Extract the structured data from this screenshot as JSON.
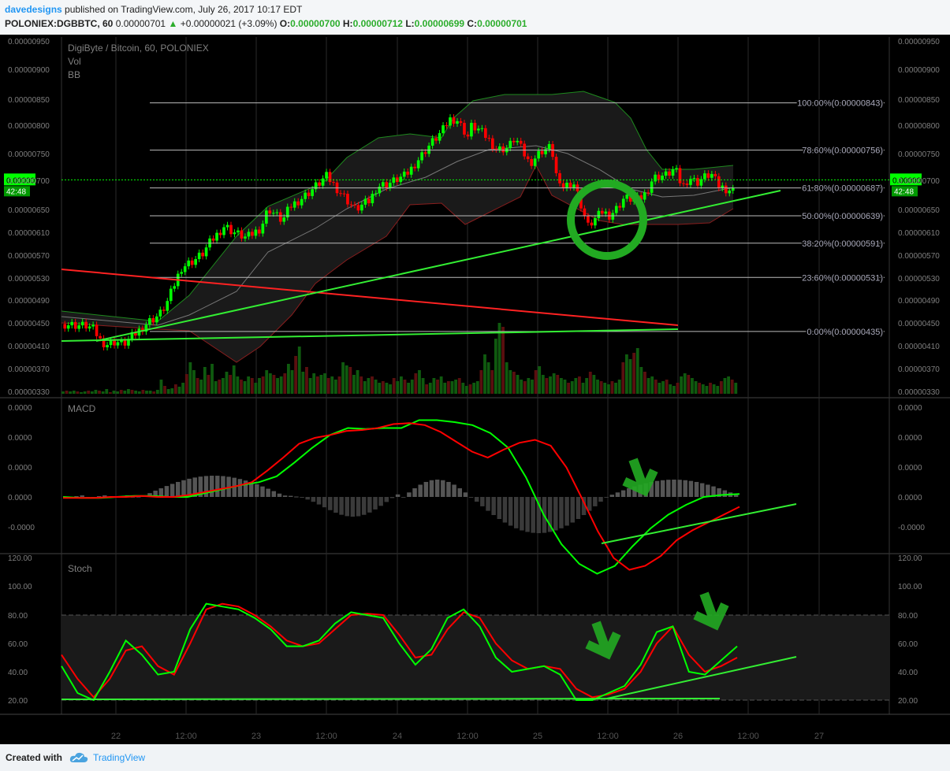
{
  "header": {
    "author": "davedesigns",
    "published_text": "published on TradingView.com, July 26, 2017 10:17 EDT",
    "symbol": "POLONIEX:DGBBTC, 60",
    "last_price": "0.00000701",
    "arrow": "▲",
    "change": "+0.00000021 (+3.09%)",
    "o_label": "O:",
    "o_value": "0.00000700",
    "h_label": "H:",
    "h_value": "0.00000712",
    "l_label": "L:",
    "l_value": "0.00000699",
    "c_label": "C:",
    "c_value": "0.00000701"
  },
  "footer": {
    "created_with": "Created with",
    "brand": "TradingView"
  },
  "colors": {
    "background": "#000000",
    "bull": "#00ff00",
    "bear": "#ff0000",
    "trendline_green": "#33ee33",
    "trendline_red": "#ff2222",
    "axis_text": "#7f7f7f",
    "grid": "#2a2a2a",
    "price_badge": "#00ff00",
    "annotation": "#22aa22"
  },
  "chart_data": [
    {
      "type": "candlestick",
      "panel": "price",
      "title": "DigiByte / Bitcoin, 60, POLONIEX",
      "studies": [
        "Vol",
        "BB"
      ],
      "y_ticks": [
        "0.00000950",
        "0.00000900",
        "0.00000850",
        "0.00000800",
        "0.00000750",
        "0.00000700",
        "0.00000650",
        "0.00000610",
        "0.00000570",
        "0.00000530",
        "0.00000490",
        "0.00000450",
        "0.00000410",
        "0.00000370",
        "0.00000330"
      ],
      "x_ticks": [
        "22",
        "12:00",
        "23",
        "12:00",
        "24",
        "12:00",
        "25",
        "12:00",
        "26",
        "12:00",
        "27"
      ],
      "current_price": "0.00000701",
      "countdown": "42:48",
      "close_path": [
        [
          0,
          448
        ],
        [
          3,
          446
        ],
        [
          6,
          445
        ],
        [
          8,
          438
        ],
        [
          10,
          417
        ],
        [
          12,
          412
        ],
        [
          14,
          418
        ],
        [
          16,
          412
        ],
        [
          20,
          434
        ],
        [
          23,
          452
        ],
        [
          26,
          464
        ],
        [
          28,
          483
        ],
        [
          32,
          548
        ],
        [
          36,
          563
        ],
        [
          38,
          573
        ],
        [
          40,
          592
        ],
        [
          44,
          622
        ],
        [
          46,
          612
        ],
        [
          50,
          600
        ],
        [
          54,
          618
        ],
        [
          56,
          652
        ],
        [
          60,
          630
        ],
        [
          62,
          655
        ],
        [
          66,
          673
        ],
        [
          70,
          695
        ],
        [
          72,
          708
        ],
        [
          74,
          693
        ],
        [
          80,
          650
        ],
        [
          84,
          665
        ],
        [
          86,
          690
        ],
        [
          89,
          694
        ],
        [
          94,
          710
        ],
        [
          100,
          762
        ],
        [
          104,
          790
        ],
        [
          106,
          812
        ],
        [
          108,
          810
        ],
        [
          111,
          780
        ],
        [
          112,
          799
        ],
        [
          114,
          792
        ],
        [
          116,
          780
        ],
        [
          119,
          757
        ],
        [
          122,
          760
        ],
        [
          124,
          778
        ],
        [
          128,
          731
        ],
        [
          131,
          754
        ],
        [
          134,
          762
        ],
        [
          136,
          686
        ],
        [
          140,
          698
        ],
        [
          142,
          661
        ],
        [
          144,
          620
        ],
        [
          148,
          646
        ],
        [
          150,
          640
        ],
        [
          152,
          652
        ],
        [
          154,
          670
        ],
        [
          158,
          666
        ],
        [
          160,
          678
        ],
        [
          162,
          705
        ],
        [
          166,
          711
        ],
        [
          168,
          722
        ],
        [
          170,
          688
        ],
        [
          172,
          706
        ],
        [
          174,
          696
        ],
        [
          176,
          706
        ],
        [
          178,
          712
        ],
        [
          180,
          690
        ],
        [
          184,
          682
        ]
      ],
      "fibonacci": [
        {
          "label": "100.00%(0.00000843)",
          "price": 8.43e-06
        },
        {
          "label": "78.60%(0.00000756)",
          "price": 7.56e-06
        },
        {
          "label": "61.80%(0.00000687)",
          "price": 6.87e-06
        },
        {
          "label": "50.00%(0.00000639)",
          "price": 6.39e-06
        },
        {
          "label": "38.20%(0.00000591)",
          "price": 5.91e-06
        },
        {
          "label": "23.60%(0.00000531)",
          "price": 5.31e-06
        },
        {
          "label": "0.00%(0.00000435)",
          "price": 4.35e-06
        }
      ],
      "volume": [
        3,
        4,
        3,
        4,
        3,
        2,
        3,
        4,
        3,
        5,
        4,
        3,
        6,
        2,
        4,
        3,
        5,
        4,
        6,
        5,
        4,
        3,
        5,
        4,
        4,
        3,
        5,
        18,
        10,
        6,
        7,
        12,
        9,
        14,
        25,
        40,
        30,
        20,
        18,
        34,
        24,
        38,
        16,
        18,
        20,
        28,
        24,
        36,
        22,
        18,
        16,
        22,
        20,
        14,
        20,
        22,
        30,
        26,
        24,
        20,
        22,
        26,
        38,
        30,
        48,
        60,
        28,
        34,
        20,
        26,
        22,
        24,
        26,
        20,
        22,
        18,
        22,
        40,
        36,
        34,
        24,
        30,
        22,
        16,
        20,
        22,
        18,
        14,
        16,
        14,
        12,
        20,
        16,
        22,
        18,
        14,
        18,
        26,
        30,
        20,
        12,
        14,
        20,
        18,
        22,
        14,
        16,
        16,
        18,
        20,
        14,
        10,
        12,
        14,
        16,
        30,
        50,
        40,
        30,
        70,
        90,
        85,
        40,
        30,
        28,
        24,
        18,
        16,
        20,
        18,
        30,
        35,
        24,
        20,
        22,
        26,
        24,
        20,
        18,
        14,
        16,
        20,
        22,
        14,
        20,
        28,
        24,
        18,
        16,
        14,
        12,
        16,
        14,
        18,
        40,
        50,
        44,
        52,
        58,
        34,
        28,
        20,
        22,
        18,
        14,
        16,
        18,
        12,
        10,
        14,
        22,
        26,
        24,
        20,
        16,
        14,
        12,
        10,
        14,
        12,
        10,
        16,
        20,
        22,
        18,
        14
      ]
    },
    {
      "type": "line",
      "panel": "macd",
      "title": "MACD",
      "y_ticks": [
        "0.0000",
        "0.0000",
        "0.0000",
        "0.0000",
        "-0.0000"
      ],
      "series": [
        {
          "name": "",
          "values": [
            0,
            -1,
            -1,
            0,
            1,
            1,
            0,
            0,
            4,
            8,
            12,
            15,
            21,
            35,
            50,
            63,
            70,
            69,
            70,
            70,
            78,
            78,
            76,
            73,
            65,
            50,
            20,
            -18,
            -48,
            -68,
            -78,
            -70,
            -50,
            -32,
            -18,
            -8,
            0,
            2,
            3
          ]
        },
        {
          "name": "",
          "values": [
            -1,
            -1,
            -1,
            0,
            0,
            1,
            0,
            0,
            2,
            5,
            8,
            11,
            15,
            27,
            40,
            54,
            60,
            63,
            67,
            68,
            70,
            74,
            75,
            73,
            66,
            56,
            46,
            40,
            48,
            55,
            58,
            52,
            30,
            -2,
            -35,
            -62,
            -74,
            -70,
            -60,
            -44,
            -34,
            -26,
            -18,
            -10
          ]
        }
      ]
    },
    {
      "type": "line",
      "panel": "stoch",
      "title": "Stoch",
      "y_ticks": [
        "120.00",
        "100.00",
        "80.00",
        "60.00",
        "40.00",
        "20.00"
      ],
      "series": [
        {
          "name": "",
          "values": [
            44,
            25,
            20,
            40,
            62,
            52,
            38,
            40,
            70,
            88,
            86,
            84,
            78,
            70,
            58,
            58,
            62,
            74,
            82,
            80,
            78,
            60,
            45,
            56,
            78,
            84,
            72,
            50,
            40,
            42,
            44,
            38,
            20,
            20,
            25,
            30,
            45,
            68,
            72,
            40,
            38,
            48,
            58
          ]
        },
        {
          "name": "",
          "values": [
            52,
            35,
            22,
            35,
            55,
            58,
            44,
            38,
            60,
            84,
            88,
            86,
            80,
            72,
            62,
            58,
            60,
            70,
            80,
            81,
            80,
            66,
            50,
            52,
            70,
            82,
            78,
            60,
            48,
            42,
            44,
            42,
            28,
            22,
            24,
            28,
            40,
            60,
            72,
            52,
            40,
            44,
            50
          ]
        }
      ]
    }
  ],
  "annotations": {
    "circle": "green-circle",
    "arrows": 3
  }
}
